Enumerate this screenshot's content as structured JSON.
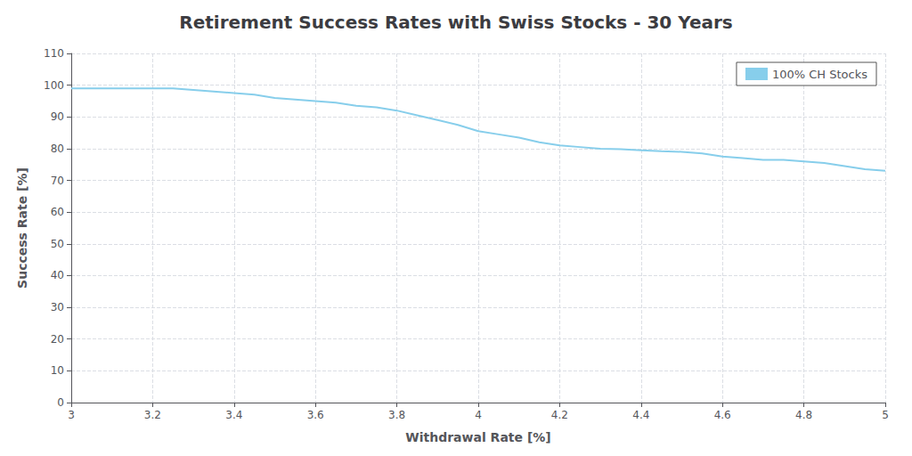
{
  "chart_data": {
    "type": "line",
    "title": "Retirement Success Rates with Swiss Stocks - 30 Years",
    "xlabel": "Withdrawal Rate [%]",
    "ylabel": "Success Rate [%]",
    "x": [
      3.0,
      3.05,
      3.1,
      3.15,
      3.2,
      3.25,
      3.3,
      3.35,
      3.4,
      3.45,
      3.5,
      3.55,
      3.6,
      3.65,
      3.7,
      3.75,
      3.8,
      3.85,
      3.9,
      3.95,
      4.0,
      4.05,
      4.1,
      4.15,
      4.2,
      4.25,
      4.3,
      4.35,
      4.4,
      4.45,
      4.5,
      4.55,
      4.6,
      4.65,
      4.7,
      4.75,
      4.8,
      4.85,
      4.9,
      4.95,
      5.0
    ],
    "series": [
      {
        "name": "100% CH Stocks",
        "color": "#87CEEB",
        "values": [
          99.0,
          99.0,
          99.0,
          99.0,
          99.0,
          99.0,
          98.5,
          98.0,
          97.5,
          97.0,
          96.0,
          95.5,
          95.0,
          94.5,
          93.5,
          93.0,
          92.0,
          90.5,
          89.0,
          87.5,
          85.5,
          84.5,
          83.5,
          82.0,
          81.0,
          80.5,
          80.0,
          79.8,
          79.5,
          79.2,
          79.0,
          78.5,
          77.5,
          77.0,
          76.5,
          76.5,
          76.0,
          75.5,
          74.5,
          73.5,
          73.0
        ]
      }
    ],
    "xlim": [
      3,
      5
    ],
    "ylim": [
      0,
      110
    ],
    "xticks": [
      3,
      3.2,
      3.4,
      3.6,
      3.8,
      4,
      4.2,
      4.4,
      4.6,
      4.8,
      5
    ],
    "yticks": [
      0,
      10,
      20,
      30,
      40,
      50,
      60,
      70,
      80,
      90,
      100,
      110
    ],
    "grid": true,
    "legend": "upper right"
  }
}
